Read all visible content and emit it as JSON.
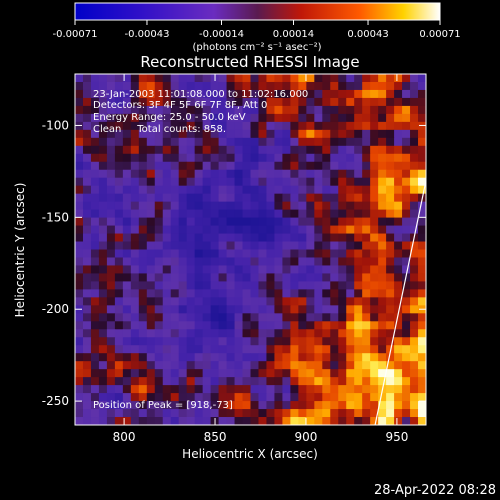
{
  "chart_data": {
    "type": "heatmap",
    "title": "Reconstructed RHESSI Image",
    "xlabel": "Heliocentric X (arcsec)",
    "ylabel": "Heliocentric Y (arcsec)",
    "xlim": [
      773,
      966
    ],
    "ylim": [
      -263,
      -72
    ],
    "x_ticks": [
      800,
      850,
      900,
      950
    ],
    "y_ticks": [
      -100,
      -150,
      -200,
      -250
    ],
    "colorbar": {
      "ticks": [
        -0.00071,
        -0.00043,
        -0.00014,
        0.00014,
        0.00043,
        0.00071
      ],
      "tick_labels": [
        "-0.00071",
        "-0.00043",
        "-0.00014",
        "0.00014",
        "0.00043",
        "0.00071"
      ],
      "units": "(photons cm⁻² s⁻¹ asec⁻²)",
      "range": [
        -0.00071,
        0.00071
      ]
    },
    "annotations": [
      "23-Jan-2003 11:01:08.000 to 11:02:16.000",
      "Detectors: 3F 4F 5F 6F 7F 8F, Att 0",
      "Energy Range: 25.0 - 50.0 keV",
      "Clean     Total counts: 858.",
      "Position of Peak = [918,-73]"
    ],
    "limb_line": [
      [
        938,
        -263
      ],
      [
        966,
        -130
      ]
    ],
    "grid": false,
    "colormap": "blue-purple-red-yellow-white"
  },
  "footer": {
    "timestamp": "28-Apr-2022 08:28"
  }
}
